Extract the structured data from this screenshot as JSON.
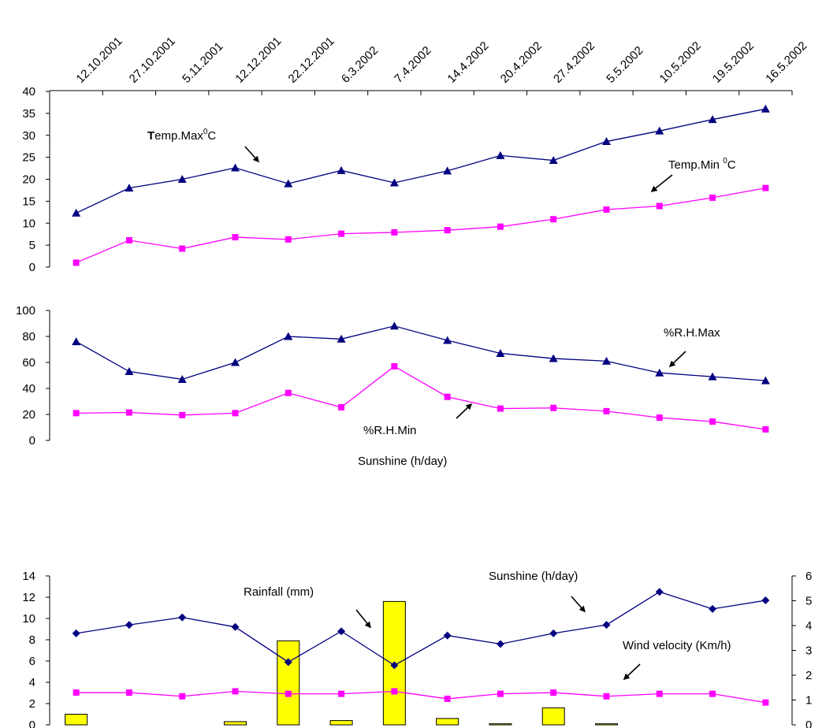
{
  "dates": [
    "12.10.2001",
    "27.10.2001",
    "5.11.2001",
    "12.12.2001",
    "22.12.2001",
    "6.3.2002",
    "7.4.2002",
    "14.4.2002",
    "20.4.2002",
    "27.4.2002",
    "5.5.2002",
    "10.5.2002",
    "19.5.2002",
    "16.5.2002"
  ],
  "chart_data": [
    {
      "type": "line",
      "x_ticks": [
        "12.10.2001",
        "27.10.2001",
        "5.11.2001",
        "12.12.2001",
        "22.12.2001",
        "6.3.2002",
        "7.4.2002",
        "14.4.2002",
        "20.4.2002",
        "27.4.2002",
        "5.5.2002",
        "10.5.2002",
        "19.5.2002",
        "16.5.2002"
      ],
      "ylim": [
        0,
        40
      ],
      "y_ticks": [
        0,
        5,
        10,
        15,
        20,
        25,
        30,
        35,
        40
      ],
      "grid": false,
      "series": [
        {
          "name_bold": "T",
          "name": "emp.Max",
          "name_sup": "0",
          "name_unit": "C",
          "color": "#000080",
          "marker": "triangle",
          "values": [
            12.3,
            18,
            20,
            22.6,
            19,
            22,
            19.2,
            21.9,
            25.4,
            24.3,
            28.6,
            31,
            33.6,
            36
          ]
        },
        {
          "name": "Temp.Min ",
          "name_sup": "0",
          "name_unit": "C",
          "color": "#ff00ff",
          "marker": "square",
          "values": [
            1,
            6.1,
            4.2,
            6.8,
            6.3,
            7.6,
            7.9,
            8.4,
            9.2,
            10.9,
            13.1,
            13.9,
            15.8,
            18
          ]
        }
      ]
    },
    {
      "type": "line",
      "ylim": [
        0,
        100
      ],
      "y_ticks": [
        0,
        20,
        40,
        60,
        80,
        100
      ],
      "grid": false,
      "series": [
        {
          "name": "%R.H.Max",
          "color": "#000080",
          "marker": "triangle",
          "values": [
            76,
            53,
            47,
            60,
            80,
            78,
            88,
            77,
            67,
            63,
            61,
            52,
            49,
            46
          ]
        },
        {
          "name": "%R.H.Min",
          "color": "#ff00ff",
          "marker": "square",
          "values": [
            21,
            21.5,
            19.5,
            21,
            36.5,
            25.5,
            57,
            33.5,
            24.5,
            25,
            22.5,
            17.5,
            14.5,
            8.5
          ]
        }
      ],
      "stray_label": "Sunshine (h/day)"
    },
    {
      "type": "bar+line",
      "ylim_left": [
        0,
        14
      ],
      "y_ticks_left": [
        0,
        2,
        4,
        6,
        8,
        10,
        12,
        14
      ],
      "ylim_right": [
        0,
        6
      ],
      "y_ticks_right": [
        0,
        1,
        2,
        3,
        4,
        5,
        6
      ],
      "grid": false,
      "series": [
        {
          "name": "Rainfall (mm)",
          "type": "bar",
          "axis": "left",
          "color": "#ffff00",
          "values": [
            1,
            0,
            0,
            0.3,
            7.9,
            0.4,
            11.6,
            0.6,
            0.1,
            1.6,
            0.1,
            0,
            0,
            0
          ]
        },
        {
          "name": "Sunshine (h/day)",
          "type": "line",
          "axis": "left",
          "color": "#000080",
          "marker": "diamond",
          "values": [
            8.6,
            9.4,
            10.1,
            9.2,
            5.9,
            8.8,
            5.6,
            8.4,
            7.6,
            8.6,
            9.4,
            12.5,
            10.9,
            11.7
          ]
        },
        {
          "name": "Wind velocity (Km/h)",
          "type": "line",
          "axis": "right",
          "color": "#ff00ff",
          "marker": "square",
          "values": [
            1.3,
            1.3,
            1.15,
            1.35,
            1.25,
            1.25,
            1.35,
            1.05,
            1.25,
            1.3,
            1.15,
            1.25,
            1.25,
            0.9
          ]
        }
      ]
    }
  ]
}
